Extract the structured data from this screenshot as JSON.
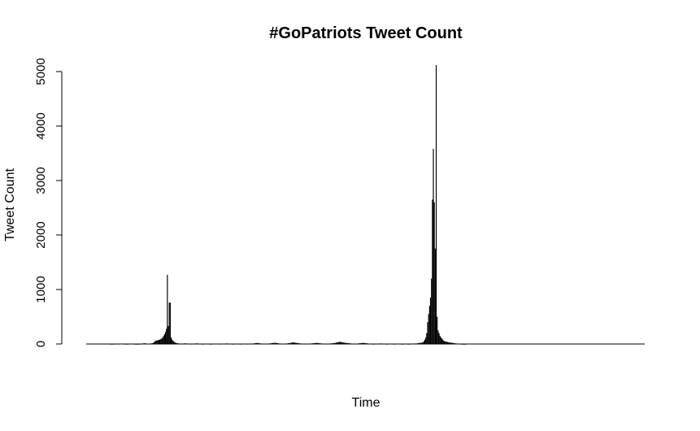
{
  "chart_data": {
    "type": "bar",
    "title": "#GoPatriots Tweet Count",
    "xlabel": "Time",
    "ylabel": "Tweet Count",
    "ylim": [
      0,
      5000
    ],
    "yticks": [
      0,
      1000,
      2000,
      3000,
      4000,
      5000
    ],
    "ytick_labels": [
      "0",
      "1000",
      "2000",
      "3000",
      "4000",
      "5000"
    ],
    "bar_color": "#000000",
    "grid": false,
    "legend": "none",
    "n_bins": 588,
    "series": [
      {
        "values": [
          0,
          0,
          0,
          0,
          0,
          0,
          0,
          0,
          0,
          0,
          0,
          0,
          0,
          0,
          0,
          0,
          0,
          0,
          0,
          0,
          3,
          5,
          7,
          5,
          3,
          2,
          1,
          2,
          3,
          2,
          3,
          4,
          5,
          4,
          3,
          5,
          6,
          8,
          6,
          4,
          3,
          2,
          1,
          2,
          3,
          4,
          5,
          6,
          5,
          4,
          3,
          2,
          1,
          1,
          2,
          3,
          2,
          3,
          5,
          8,
          12,
          15,
          10,
          8,
          5,
          3,
          5,
          8,
          10,
          15,
          20,
          35,
          50,
          60,
          65,
          70,
          75,
          80,
          90,
          100,
          120,
          150,
          180,
          220,
          280,
          1270,
          330,
          760,
          760,
          120,
          80,
          60,
          40,
          30,
          20,
          15,
          12,
          10,
          8,
          6,
          5,
          6,
          8,
          10,
          12,
          10,
          8,
          6,
          5,
          4,
          3,
          4,
          5,
          6,
          8,
          10,
          12,
          9,
          7,
          5,
          4,
          3,
          2,
          3,
          4,
          5,
          6,
          5,
          4,
          3,
          2,
          2,
          3,
          4,
          5,
          6,
          7,
          8,
          6,
          5,
          4,
          3,
          4,
          5,
          6,
          7,
          8,
          9,
          10,
          8,
          6,
          5,
          4,
          3,
          2,
          3,
          4,
          5,
          6,
          5,
          4,
          3,
          2,
          3,
          4,
          5,
          6,
          5,
          4,
          3,
          4,
          5,
          6,
          7,
          8,
          9,
          10,
          12,
          15,
          18,
          20,
          15,
          12,
          10,
          8,
          6,
          5,
          4,
          5,
          6,
          7,
          8,
          9,
          10,
          12,
          15,
          18,
          20,
          22,
          20,
          18,
          15,
          12,
          10,
          8,
          6,
          5,
          4,
          5,
          6,
          8,
          10,
          12,
          15,
          18,
          20,
          25,
          30,
          28,
          25,
          22,
          20,
          18,
          15,
          12,
          10,
          8,
          6,
          5,
          4,
          3,
          4,
          5,
          6,
          7,
          8,
          9,
          10,
          12,
          14,
          16,
          18,
          20,
          18,
          16,
          14,
          12,
          10,
          8,
          6,
          5,
          4,
          3,
          4,
          5,
          6,
          8,
          10,
          12,
          14,
          16,
          18,
          20,
          25,
          30,
          35,
          40,
          38,
          35,
          30,
          28,
          25,
          22,
          20,
          18,
          16,
          14,
          12,
          10,
          8,
          6,
          5,
          4,
          5,
          6,
          8,
          10,
          12,
          14,
          16,
          18,
          20,
          18,
          16,
          14,
          12,
          10,
          8,
          6,
          5,
          4,
          3,
          2,
          3,
          4,
          5,
          6,
          7,
          8,
          9,
          10,
          8,
          6,
          5,
          4,
          3,
          2,
          3,
          4,
          5,
          6,
          5,
          4,
          3,
          2,
          3,
          4,
          5,
          6,
          5,
          4,
          3,
          2,
          2,
          3,
          4,
          5,
          4,
          3,
          2,
          3,
          4,
          5,
          6,
          7,
          8,
          9,
          10,
          12,
          15,
          18,
          20,
          22,
          25,
          30,
          50,
          80,
          120,
          200,
          400,
          550,
          700,
          850,
          1200,
          2650,
          3580,
          2600,
          1750,
          5120,
          500,
          250,
          200,
          150,
          120,
          100,
          80,
          60,
          50,
          45,
          40,
          35,
          30,
          28,
          25,
          22,
          20,
          18,
          15,
          12,
          10,
          8,
          6,
          5,
          4,
          3,
          2,
          1,
          1,
          1,
          1,
          0,
          0,
          0,
          0,
          0,
          0,
          0,
          0,
          0,
          0,
          0,
          0,
          0,
          0,
          0,
          0,
          0,
          0,
          0,
          0,
          0,
          0,
          0,
          0,
          0,
          0,
          0,
          0,
          0,
          0,
          0,
          0,
          0,
          0,
          0,
          0,
          0,
          0,
          0,
          0,
          0,
          0,
          0,
          0,
          0,
          0,
          0,
          0,
          0,
          0,
          0,
          0,
          0,
          0,
          0,
          0,
          0,
          0,
          0,
          0,
          0,
          0,
          0,
          0,
          0,
          0,
          0,
          0,
          0,
          0,
          0,
          0,
          0,
          0,
          0,
          0,
          0,
          0,
          0,
          0,
          0,
          0,
          0,
          0,
          0,
          0,
          0,
          0,
          0,
          0,
          0,
          0,
          0,
          0,
          0,
          0,
          0,
          0,
          0,
          0,
          0,
          0,
          0,
          0,
          0,
          0,
          0,
          0,
          0,
          0,
          0,
          0,
          0,
          0,
          0,
          0,
          0,
          0,
          0,
          0,
          0,
          0,
          0,
          0,
          0,
          0,
          0,
          0,
          0,
          0,
          0,
          0,
          0,
          0,
          0,
          0,
          0,
          0,
          0,
          0,
          0,
          0,
          0,
          0,
          0,
          0,
          0,
          0,
          0,
          0,
          0,
          0,
          0,
          0,
          0,
          0,
          0,
          0,
          0,
          0,
          0,
          0,
          0,
          0,
          0,
          0,
          0,
          0,
          0,
          0,
          0,
          0,
          0,
          0,
          0,
          0,
          0,
          0,
          0,
          0,
          0,
          0,
          0,
          0,
          0,
          0,
          0,
          0
        ]
      }
    ]
  }
}
